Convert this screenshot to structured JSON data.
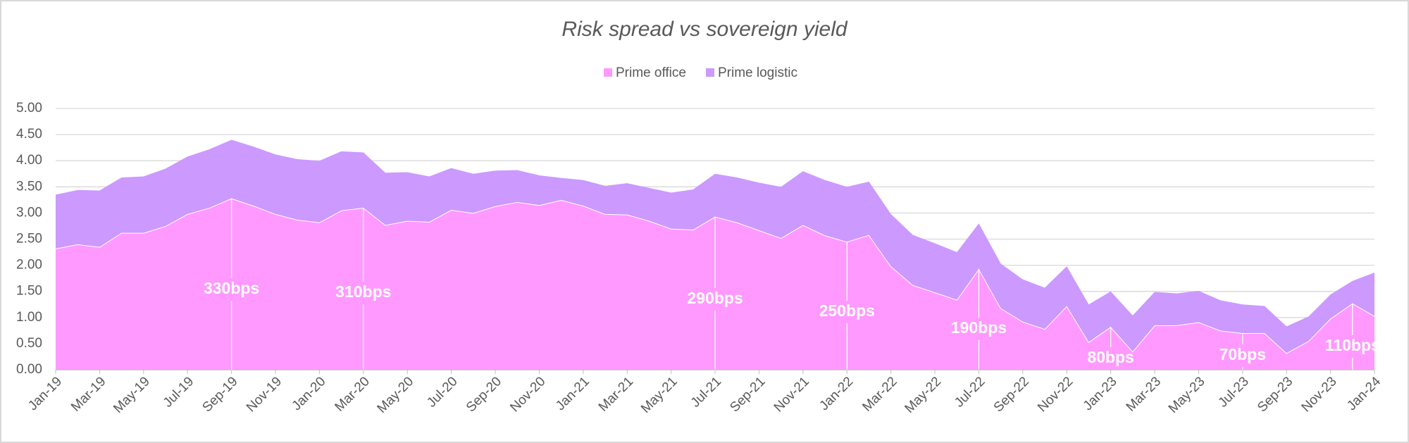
{
  "chart_data": {
    "type": "stacked_area",
    "title": "Risk spread vs sovereign yield",
    "categories": [
      "Jan-19",
      null,
      "Mar-19",
      null,
      "May-19",
      null,
      "Jul-19",
      null,
      "Sep-19",
      null,
      "Nov-19",
      null,
      "Jan-20",
      null,
      "Mar-20",
      null,
      "May-20",
      null,
      "Jul-20",
      null,
      "Sep-20",
      null,
      "Nov-20",
      null,
      "Jan-21",
      null,
      "Mar-21",
      null,
      "May-21",
      null,
      "Jul-21",
      null,
      "Sep-21",
      null,
      "Nov-21",
      null,
      "Jan-22",
      null,
      "Mar-22",
      null,
      "May-22",
      null,
      "Jul-22",
      null,
      "Sep-22",
      null,
      "Nov-22",
      null,
      "Jan-23",
      null,
      "Mar-23",
      null,
      "May-23",
      null,
      "Jul-23",
      null,
      "Sep-23",
      null,
      "Nov-23",
      null,
      "Jan-24"
    ],
    "series": [
      {
        "name": "Prime office",
        "color": "#ff99ff",
        "values": [
          2.32,
          2.4,
          2.35,
          2.62,
          2.62,
          2.75,
          2.98,
          3.1,
          3.28,
          3.14,
          2.98,
          2.87,
          2.82,
          3.05,
          3.1,
          2.77,
          2.85,
          2.83,
          3.06,
          3.0,
          3.13,
          3.21,
          3.15,
          3.25,
          3.14,
          2.98,
          2.97,
          2.85,
          2.7,
          2.68,
          2.93,
          2.82,
          2.67,
          2.52,
          2.77,
          2.57,
          2.45,
          2.58,
          1.98,
          1.62,
          1.48,
          1.34,
          1.93,
          1.18,
          0.92,
          0.78,
          1.22,
          0.53,
          0.82,
          0.35,
          0.85,
          0.85,
          0.91,
          0.75,
          0.7,
          0.7,
          0.32,
          0.55,
          0.98,
          1.27,
          1.03
        ]
      },
      {
        "name": "Prime logistic",
        "color": "#cc99ff",
        "values": [
          1.03,
          1.04,
          1.08,
          1.06,
          1.08,
          1.1,
          1.1,
          1.12,
          1.12,
          1.13,
          1.14,
          1.16,
          1.18,
          1.13,
          1.06,
          1.0,
          0.93,
          0.87,
          0.8,
          0.75,
          0.68,
          0.61,
          0.57,
          0.42,
          0.49,
          0.54,
          0.6,
          0.63,
          0.69,
          0.77,
          0.82,
          0.86,
          0.91,
          0.98,
          1.03,
          1.06,
          1.05,
          1.02,
          1.0,
          0.96,
          0.94,
          0.91,
          0.87,
          0.85,
          0.81,
          0.79,
          0.76,
          0.72,
          0.68,
          0.69,
          0.64,
          0.61,
          0.6,
          0.58,
          0.55,
          0.52,
          0.51,
          0.47,
          0.46,
          0.43,
          0.83
        ]
      }
    ],
    "annotations": [
      "330bps",
      "310bps",
      "290bps",
      "250bps",
      "190bps",
      "80bps",
      "70bps",
      "110bps"
    ],
    "ylim": [
      0,
      5
    ],
    "yticks": [
      {
        "value": 0,
        "label": "0.00"
      },
      {
        "value": 0.5,
        "label": "0.50"
      },
      {
        "value": 1,
        "label": "1.00"
      },
      {
        "value": 1.5,
        "label": "1.50"
      },
      {
        "value": 2,
        "label": "2.00"
      },
      {
        "value": 2.5,
        "label": "2.50"
      },
      {
        "value": 3,
        "label": "3.00"
      },
      {
        "value": 3.5,
        "label": "3.50"
      },
      {
        "value": 4,
        "label": "4.00"
      },
      {
        "value": 4.5,
        "label": "4.50"
      },
      {
        "value": 5,
        "label": "5.00"
      }
    ],
    "grid": true,
    "legend": "top"
  }
}
